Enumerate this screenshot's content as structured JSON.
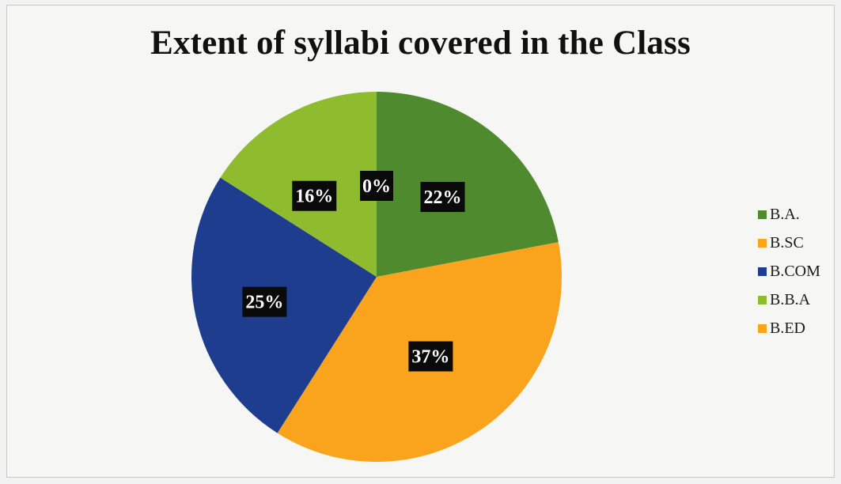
{
  "chart_data": {
    "type": "pie",
    "title": "Extent of syllabi covered in the Class",
    "categories": [
      "B.A.",
      "B.SC",
      "B.COM",
      "B.B.A",
      "B.ED"
    ],
    "values": [
      22,
      37,
      25,
      16,
      0
    ],
    "data_labels": [
      "22%",
      "37%",
      "25%",
      "16%",
      "0%"
    ],
    "colors": [
      "#4f8a2e",
      "#f9a41c",
      "#1f3d8f",
      "#8fbc2e",
      "#f9a41c"
    ],
    "legend_position": "right"
  }
}
